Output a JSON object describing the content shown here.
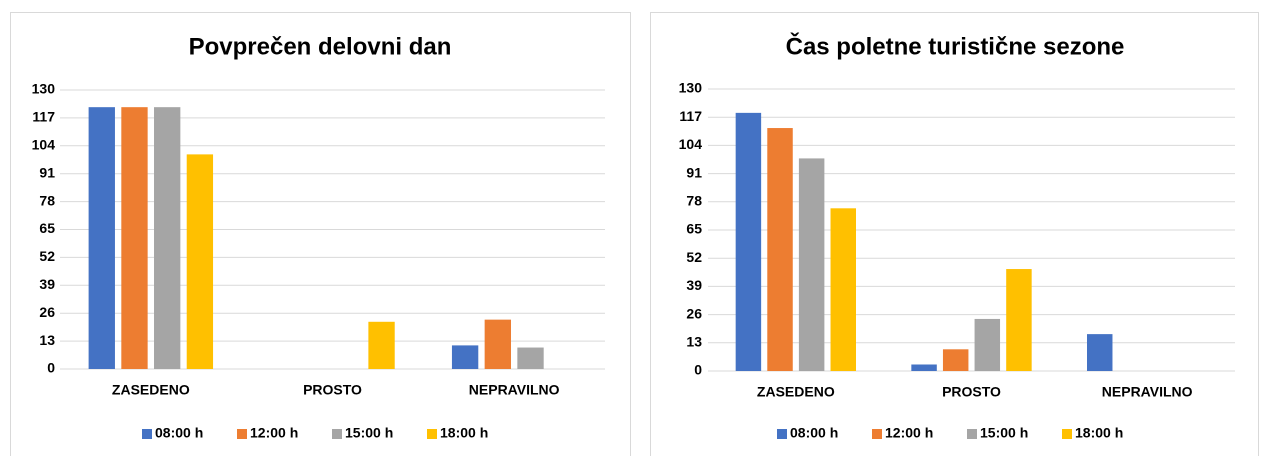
{
  "chart_data": [
    {
      "type": "bar",
      "title": "Povprečen delovni dan",
      "categories": [
        "ZASEDENO",
        "PROSTO",
        "NEPRAVILNO"
      ],
      "series": [
        {
          "name": "08:00 h",
          "color": "#4472c4",
          "values": [
            122,
            0,
            11
          ]
        },
        {
          "name": "12:00 h",
          "color": "#ed7d31",
          "values": [
            122,
            0,
            23
          ]
        },
        {
          "name": "15:00 h",
          "color": "#a5a5a5",
          "values": [
            122,
            0,
            10
          ]
        },
        {
          "name": "18:00 h",
          "color": "#ffc000",
          "values": [
            100,
            22,
            0
          ]
        }
      ],
      "ylim": [
        0,
        130
      ],
      "yticks": [
        0,
        13,
        26,
        39,
        52,
        65,
        78,
        91,
        104,
        117,
        130
      ],
      "grid": true,
      "legend": "bottom"
    },
    {
      "type": "bar",
      "title": "Čas poletne turistične sezone",
      "categories": [
        "ZASEDENO",
        "PROSTO",
        "NEPRAVILNO"
      ],
      "series": [
        {
          "name": "08:00 h",
          "color": "#4472c4",
          "values": [
            119,
            3,
            17
          ]
        },
        {
          "name": "12:00 h",
          "color": "#ed7d31",
          "values": [
            112,
            10,
            0
          ]
        },
        {
          "name": "15:00 h",
          "color": "#a5a5a5",
          "values": [
            98,
            24,
            0
          ]
        },
        {
          "name": "18:00 h",
          "color": "#ffc000",
          "values": [
            75,
            47,
            0
          ]
        }
      ],
      "ylim": [
        0,
        130
      ],
      "yticks": [
        0,
        13,
        26,
        39,
        52,
        65,
        78,
        91,
        104,
        117,
        130
      ],
      "grid": true,
      "legend": "bottom"
    }
  ]
}
